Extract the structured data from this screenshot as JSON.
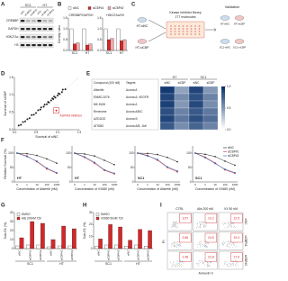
{
  "panel_labels": [
    "A",
    "B",
    "C",
    "D",
    "E",
    "F",
    "G",
    "H",
    "I"
  ],
  "blot": {
    "groups": [
      "SC1",
      "HT"
    ],
    "lanes": [
      "siNC",
      "siCBP#1",
      "siCBP#2"
    ],
    "proteins": [
      "CREBBP",
      "GAPDH",
      "H3K27Ac",
      "H3"
    ]
  },
  "schematic": {
    "lines": [
      "HT-siNC",
      "HT-siCBP"
    ],
    "library": "Kinase inhibitor library",
    "count": "177 molecules",
    "validation": "Validation",
    "validation_lines": [
      "HT-siNC",
      "HT-siCBP",
      "SC1-siNC",
      "SC1-siCBP"
    ]
  },
  "chart_data": [
    {
      "type": "bar",
      "title": "CREBBP/GAPDH",
      "ylabel": "Density ratio",
      "categories": [
        "SC1",
        "HT"
      ],
      "series": [
        {
          "name": "siNC",
          "color": "#ffffff",
          "values": [
            1,
            1
          ]
        },
        {
          "name": "siCBP#1",
          "color": "#d62728",
          "values": [
            0.3,
            0.25
          ]
        },
        {
          "name": "siCBP#2",
          "color": "#f4a6a6",
          "values": [
            0.35,
            0.3
          ]
        }
      ],
      "ylim": [
        0,
        1.5
      ],
      "yticks": [
        {
          "value": 0,
          "label": "0.0"
        },
        0.5,
        {
          "value": 1,
          "label": "1.0"
        },
        1.5
      ],
      "legend": "top"
    },
    {
      "type": "bar",
      "title": "H3K27Ac/H3",
      "categories": [
        "SC1",
        "HT"
      ],
      "series": [
        {
          "color": "#ffffff",
          "values": [
            1,
            1
          ]
        },
        {
          "color": "#d62728",
          "values": [
            0.5,
            0.45
          ]
        },
        {
          "color": "#f4a6a6",
          "values": [
            0.55,
            0.5
          ]
        }
      ],
      "ylim": [
        0,
        1.5
      ],
      "yticks": [
        {
          "value": 0,
          "label": "0.0"
        },
        0.5,
        {
          "value": 1,
          "label": "1.0"
        },
        1.5
      ]
    },
    {
      "type": "scatter",
      "xlabel": "Survival of siNC",
      "ylabel": "Survival of siCBP",
      "annotation": "AURKA inhibitor",
      "series": [
        {
          "color": "#222222",
          "x": [
            0.1,
            0.15,
            0.2,
            0.25,
            0.3,
            0.35,
            0.4,
            0.45,
            0.5,
            0.55,
            0.6,
            0.62,
            0.68,
            0.7,
            0.75,
            0.78,
            0.8,
            0.85,
            0.88,
            0.9,
            0.92,
            0.95,
            1.0,
            1.02,
            1.05,
            1.1,
            1.12,
            1.18
          ],
          "values": [
            0.12,
            0.14,
            0.22,
            0.24,
            0.3,
            0.33,
            0.42,
            0.43,
            0.48,
            0.56,
            0.58,
            0.64,
            0.66,
            0.72,
            0.73,
            0.8,
            0.78,
            0.84,
            0.9,
            0.88,
            0.95,
            0.92,
            0.98,
            1.04,
            1.02,
            1.08,
            1.15,
            1.16
          ]
        },
        {
          "color": "#d62728",
          "x": [
            0.97
          ],
          "values": [
            0.55
          ]
        }
      ],
      "xlim": [
        0,
        1.5
      ],
      "xticks": [
        {
          "value": 0,
          "label": "0.0"
        },
        0.5,
        {
          "value": 1,
          "label": "1.0"
        },
        1.5
      ],
      "ylim": [
        0,
        1.5
      ],
      "yticks": [
        {
          "value": 0,
          "label": "0.0"
        },
        0.5,
        {
          "value": 1,
          "label": "1.0"
        },
        1.5
      ]
    },
    {
      "type": "heatmap",
      "row_header": "Compound (100 nM)",
      "target_header": "Targets",
      "rows": [
        "Alisertib",
        "ENMD-2076",
        "MK-5108",
        "Reversine",
        "AZD1152",
        "AT9283"
      ],
      "targets": [
        "Aurora A",
        "Aurora A, VEGFR",
        "Aurora A",
        "Aurora A/B/C",
        "Aurora B",
        "Aurora A/B, JAK"
      ],
      "column_groups": [
        "HT",
        "SC1"
      ],
      "columns": [
        "siNC",
        "siCBP",
        "siNC",
        "siCBP"
      ],
      "values": [
        [
          0.95,
          0.45,
          0.9,
          0.5
        ],
        [
          0.9,
          0.55,
          0.85,
          0.6
        ],
        [
          0.92,
          0.5,
          0.88,
          0.55
        ],
        [
          0.85,
          0.6,
          0.8,
          0.65
        ],
        [
          0.9,
          0.65,
          0.85,
          0.7
        ],
        [
          0.8,
          0.55,
          0.75,
          0.6
        ]
      ],
      "colors": [
        "#ffffff",
        "#08306b"
      ],
      "clim": [
        0,
        1
      ],
      "cticks": [
        {
          "value": 0,
          "label": "0.0"
        },
        0.5,
        {
          "value": 1,
          "label": "1.0"
        }
      ]
    },
    {
      "type": "line",
      "subtitle": "HT",
      "ylabel": "Relative Survival (%)",
      "xlabel": "Concentration of Alisertib (nM)",
      "categories": [
        "0",
        "1",
        "10",
        "100",
        "1000"
      ],
      "series": [
        {
          "color": "#222222",
          "values": [
            100,
            98,
            92,
            80,
            65
          ]
        },
        {
          "color": "#d62728",
          "values": [
            100,
            90,
            70,
            45,
            30
          ]
        },
        {
          "color": "#1f5fb4",
          "values": [
            100,
            88,
            72,
            48,
            32
          ]
        }
      ],
      "ylim": [
        0,
        125
      ],
      "yticks": [
        0,
        50,
        100
      ]
    },
    {
      "type": "line",
      "subtitle": "HT",
      "xlabel": "Concentration of VX680 (nM)",
      "categories": [
        "0",
        "1",
        "10",
        "100",
        "1000"
      ],
      "series": [
        {
          "color": "#222222",
          "values": [
            100,
            97,
            90,
            75,
            60
          ]
        },
        {
          "color": "#d62728",
          "values": [
            100,
            85,
            65,
            40,
            28
          ]
        },
        {
          "color": "#1f5fb4",
          "values": [
            100,
            87,
            68,
            42,
            30
          ]
        }
      ],
      "ylim": [
        0,
        125
      ],
      "yticks": [
        0,
        50,
        100
      ]
    },
    {
      "type": "line",
      "subtitle": "SC1",
      "xlabel": "Concentration of Alisertib (nM)",
      "categories": [
        "0",
        "1",
        "10",
        "100",
        "1000"
      ],
      "series": [
        {
          "color": "#222222",
          "values": [
            100,
            99,
            95,
            85,
            70
          ]
        },
        {
          "color": "#d62728",
          "values": [
            100,
            92,
            75,
            50,
            35
          ]
        },
        {
          "color": "#1f5fb4",
          "values": [
            100,
            90,
            78,
            52,
            38
          ]
        }
      ],
      "ylim": [
        0,
        125
      ],
      "yticks": [
        0,
        50,
        100
      ]
    },
    {
      "type": "line",
      "subtitle": "SC1",
      "xlabel": "Concentration of VX680 (nM)",
      "categories": [
        "0",
        "1",
        "10",
        "100",
        "1000"
      ],
      "series": [
        {
          "name": "siNC",
          "color": "#222222",
          "values": [
            100,
            96,
            88,
            72,
            58
          ]
        },
        {
          "name": "siCBP#1",
          "color": "#d62728",
          "values": [
            100,
            86,
            66,
            42,
            30
          ]
        },
        {
          "name": "siCBP#2",
          "color": "#1f5fb4",
          "values": [
            100,
            84,
            64,
            44,
            32
          ]
        }
      ],
      "ylim": [
        0,
        125
      ],
      "yticks": [
        0,
        50,
        100
      ],
      "legend": "top-right"
    },
    {
      "type": "bar",
      "ylabel": "Sub-G1 (%)",
      "categories": [
        "siNC",
        "siCBP#1",
        "siCBP#2",
        "siNC",
        "siCBP#1",
        "siCBP#2"
      ],
      "group_labels": [
        "SC1",
        "HT"
      ],
      "series": [
        {
          "name": "DMSO",
          "color": "#ffffff",
          "values": [
            3,
            4,
            4,
            2,
            3,
            3
          ]
        },
        {
          "name": "Alis 200nM 72h",
          "color": "#d62728",
          "values": [
            12,
            30,
            28,
            10,
            25,
            22
          ]
        }
      ],
      "ylim": [
        0,
        40
      ],
      "yticks": [
        0,
        10,
        20,
        30,
        40
      ],
      "legend": "top-left"
    },
    {
      "type": "bar",
      "ylabel": "Sub-G1 (%)",
      "categories": [
        "siNC",
        "siCBP#1",
        "siCBP#2",
        "siNC",
        "siCBP#1",
        "siCBP#2"
      ],
      "group_labels": [
        "SC1",
        "HT"
      ],
      "series": [
        {
          "name": "DMSO",
          "color": "#ffffff",
          "values": [
            2,
            3,
            3,
            2,
            3,
            2
          ]
        },
        {
          "name": "VX680 50nM 72h",
          "color": "#d62728",
          "values": [
            8,
            20,
            18,
            7,
            16,
            15
          ]
        }
      ],
      "ylim": [
        0,
        30
      ],
      "yticks": [
        0,
        10,
        20,
        30
      ],
      "legend": "top-left"
    }
  ],
  "flow": {
    "conditions": [
      "CTRL",
      "Alis 200 nM",
      "VX 50 nM"
    ],
    "rows": [
      "siNC",
      "siCBP#1",
      "siCBP#2"
    ],
    "percent": [
      [
        3.57,
        10.2,
        12.5
      ],
      [
        3.86,
        24.5,
        19.3
      ],
      [
        2.48,
        22.8,
        17.6
      ]
    ],
    "xlabel": "Annexin V",
    "ylabel": "PI"
  }
}
